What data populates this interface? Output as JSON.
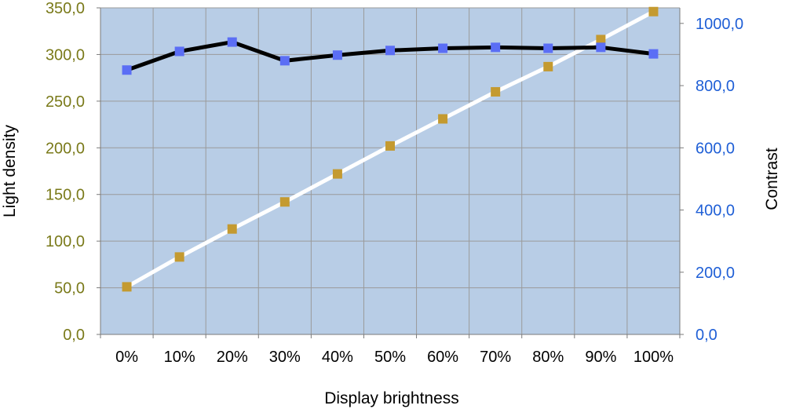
{
  "chart_data": {
    "type": "line",
    "title": "",
    "xlabel": "Display brightness",
    "ylabel_left": "Light density",
    "ylabel_right": "Contrast",
    "categories": [
      "0%",
      "10%",
      "20%",
      "30%",
      "40%",
      "50%",
      "60%",
      "70%",
      "80%",
      "90%",
      "100%"
    ],
    "y_left": {
      "min": 0,
      "max": 350,
      "step": 50,
      "tick_labels": [
        "0,0",
        "50,0",
        "100,0",
        "150,0",
        "200,0",
        "250,0",
        "300,0",
        "350,0"
      ],
      "color": "#7a7a1a"
    },
    "y_right": {
      "min": 0,
      "max": 1050,
      "step": 200,
      "tick_labels": [
        "0,0",
        "200,0",
        "400,0",
        "600,0",
        "800,0",
        "1000,0"
      ],
      "color": "#1f5fd6"
    },
    "series": [
      {
        "axis": "right",
        "values": [
          850,
          910,
          940,
          880,
          898,
          913,
          920,
          923,
          920,
          923,
          902
        ],
        "line_color": "#000000",
        "marker_color": "#5b6ef5"
      },
      {
        "axis": "left",
        "values": [
          51,
          83,
          113,
          142,
          172,
          202,
          231,
          260,
          287,
          316,
          346
        ],
        "line_color": "#ffffff",
        "marker_color": "#c49a30"
      }
    ],
    "grid": true,
    "legend": "none",
    "plot_background": "#b8cde6"
  }
}
